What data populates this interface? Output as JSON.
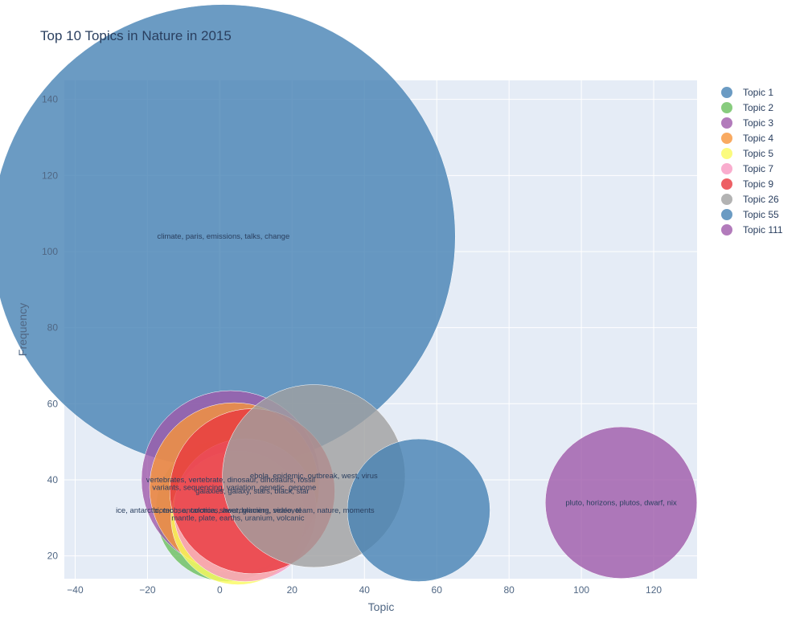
{
  "chart_data": {
    "type": "scatter",
    "title": "Top 10 Topics in Nature in 2015",
    "xlabel": "Topic",
    "ylabel": "Frequency",
    "xlim": [
      -43,
      132
    ],
    "ylim": [
      14,
      145
    ],
    "x_ticks": [
      -40,
      -20,
      0,
      20,
      40,
      60,
      80,
      100,
      120
    ],
    "y_ticks": [
      20,
      40,
      60,
      80,
      100,
      120,
      140
    ],
    "grid": true,
    "legend_position": "top-right",
    "series": [
      {
        "name": "Topic 1",
        "x": 1,
        "y": 104,
        "size": 104,
        "color": "#4682b4",
        "label": "climate, paris, emissions, talks, change"
      },
      {
        "name": "Topic 2",
        "x": 2,
        "y": 32,
        "size": 32,
        "color": "#6abf5e",
        "label": "biotech, antarctica, sheet, glaciers, sealevel"
      },
      {
        "name": "Topic 3",
        "x": 3,
        "y": 40,
        "size": 40,
        "color": "#9f5aaa",
        "label": "vertebrates, vertebrate, dinosaur, dinosaurs, fossil"
      },
      {
        "name": "Topic 4",
        "x": 4,
        "y": 38,
        "size": 38,
        "color": "#f7953a",
        "label": "variants, sequencing, variation, genetic, genome"
      },
      {
        "name": "Topic 5",
        "x": 5,
        "y": 30,
        "size": 30,
        "color": "#fafa5e",
        "label": "mantle, plate, earths, uranium, volcanic"
      },
      {
        "name": "Topic 7",
        "x": 7,
        "y": 32,
        "size": 32,
        "color": "#f898c2",
        "label": "ice, antarctic, mouse, colonies, awardwinning, video, team, nature, moments"
      },
      {
        "name": "Topic 9",
        "x": 9,
        "y": 37,
        "size": 37,
        "color": "#e9383e",
        "label": "galaxies, galaxy, stars, black, star"
      },
      {
        "name": "Topic 26",
        "x": 26,
        "y": 41,
        "size": 41,
        "color": "#a0a0a0",
        "label": "ebola, epidemic, outbreak, west, virus"
      },
      {
        "name": "Topic 55",
        "x": 55,
        "y": 32,
        "size": 32,
        "color": "#4682b4",
        "label": ""
      },
      {
        "name": "Topic 111",
        "x": 111,
        "y": 34,
        "size": 34,
        "color": "#9f5aaa",
        "label": "pluto, horizons, plutos, dwarf, nix"
      }
    ]
  }
}
